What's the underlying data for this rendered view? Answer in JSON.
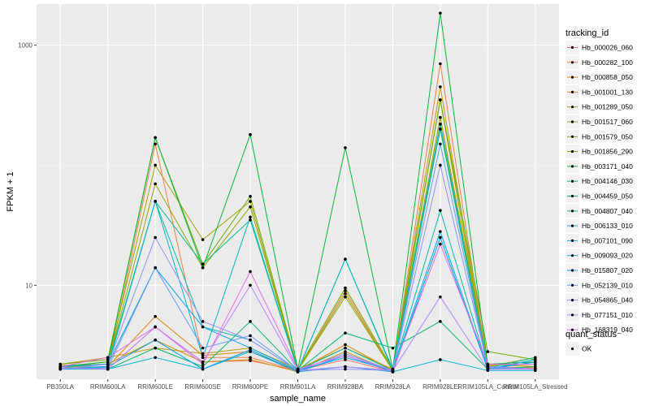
{
  "chart_data": {
    "type": "line",
    "title": "",
    "xlabel": "sample_name",
    "ylabel": "FPKM + 1",
    "y_scale": "log10",
    "ylim": [
      1.65,
      2200
    ],
    "yticks": [
      10,
      1000
    ],
    "grid": true,
    "legend_position": "right",
    "categories": [
      "PB350LA",
      "RRIM600LA",
      "RRIM600LE",
      "RRIM600SE",
      "RRIM600PE",
      "RRIM901LA",
      "RRIM928BA",
      "RRIM928LA",
      "RRIM928LE",
      "RRIM105LA_Control",
      "RRIM105LA_Stressed"
    ],
    "legend_title": "tracking_id",
    "shape_legend": {
      "title": "quant_status",
      "entries": [
        "OK"
      ]
    },
    "series": [
      {
        "name": "Hb_000026_060",
        "color": "#F8766D",
        "values": [
          2.05,
          2.0,
          4.5,
          2.3,
          2.35,
          1.95,
          2.4,
          1.9,
          250,
          2.0,
          2.3
        ]
      },
      {
        "name": "Hb_000282_100",
        "color": "#EF7F49",
        "values": [
          2.1,
          2.05,
          150,
          2.5,
          2.5,
          1.95,
          9.0,
          1.95,
          700,
          2.1,
          2.05
        ]
      },
      {
        "name": "Hb_000858_050",
        "color": "#E38900",
        "values": [
          2.05,
          2.1,
          5.5,
          2.6,
          2.8,
          1.95,
          3.2,
          1.95,
          200,
          2.2,
          2.1
        ]
      },
      {
        "name": "Hb_001001_130",
        "color": "#D39200",
        "values": [
          2.15,
          2.2,
          3.5,
          2.3,
          2.4,
          1.9,
          2.8,
          1.9,
          350,
          2.0,
          2.4
        ]
      },
      {
        "name": "Hb_001289_050",
        "color": "#C09B00",
        "values": [
          2.2,
          2.5,
          3.0,
          2.7,
          3.0,
          2.0,
          3.0,
          2.0,
          450,
          2.1,
          2.5
        ]
      },
      {
        "name": "Hb_001517_060",
        "color": "#A9A400",
        "values": [
          2.1,
          2.3,
          100,
          24,
          50,
          1.95,
          8.5,
          1.95,
          250,
          2.15,
          2.2
        ]
      },
      {
        "name": "Hb_001579_050",
        "color": "#8EAB00",
        "values": [
          2.05,
          2.2,
          70,
          14,
          45,
          1.95,
          8.0,
          1.95,
          350,
          2.1,
          2.0
        ]
      },
      {
        "name": "Hb_001856_290",
        "color": "#6BB100",
        "values": [
          2.2,
          2.4,
          170,
          15,
          55,
          2.0,
          9.5,
          2.0,
          350,
          2.8,
          2.4
        ]
      },
      {
        "name": "Hb_003171_040",
        "color": "#00BA38",
        "values": [
          2.1,
          2.3,
          170,
          14,
          180,
          2.0,
          140,
          2.0,
          1850,
          2.2,
          2.3
        ]
      },
      {
        "name": "Hb_004146_030",
        "color": "#00BE6C",
        "values": [
          2.05,
          2.0,
          3.0,
          2.1,
          5.0,
          1.95,
          4.0,
          3.0,
          5.0,
          2.0,
          2.1
        ]
      },
      {
        "name": "Hb_004459_050",
        "color": "#00C08E",
        "values": [
          2.0,
          2.1,
          50,
          15,
          35,
          1.95,
          16.5,
          1.95,
          200,
          2.0,
          2.3
        ]
      },
      {
        "name": "Hb_004807_040",
        "color": "#00C0AA",
        "values": [
          2.1,
          2.2,
          50,
          4.5,
          3.5,
          1.95,
          3.0,
          1.95,
          42,
          2.05,
          2.5
        ]
      },
      {
        "name": "Hb_006133_010",
        "color": "#00BCC3",
        "values": [
          2.05,
          2.1,
          50,
          2.5,
          37,
          1.95,
          16.5,
          2.0,
          220,
          2.1,
          2.0
        ]
      },
      {
        "name": "Hb_007101_090",
        "color": "#00B6D9",
        "values": [
          2.0,
          2.0,
          2.5,
          2.0,
          2.8,
          1.9,
          2.1,
          1.9,
          2.4,
          1.95,
          1.95
        ]
      },
      {
        "name": "Hb_009093_020",
        "color": "#00ACEC",
        "values": [
          2.1,
          2.2,
          14,
          4.5,
          3.0,
          1.95,
          2.5,
          1.95,
          28,
          2.0,
          2.4
        ]
      },
      {
        "name": "Hb_015807_020",
        "color": "#00A0FA",
        "values": [
          2.0,
          2.1,
          3.5,
          2.0,
          2.9,
          1.9,
          2.6,
          1.9,
          25,
          2.0,
          2.3
        ]
      },
      {
        "name": "Hb_052139_010",
        "color": "#619CFF",
        "values": [
          2.05,
          2.05,
          14,
          3.0,
          3.8,
          1.95,
          2.7,
          1.95,
          150,
          2.05,
          2.0
        ]
      },
      {
        "name": "Hb_054865_040",
        "color": "#9590FF",
        "values": [
          2.0,
          2.2,
          25,
          5.0,
          3.5,
          1.95,
          2.0,
          1.95,
          100,
          2.1,
          2.0
        ]
      },
      {
        "name": "Hb_077151_010",
        "color": "#B983FF",
        "values": [
          2.05,
          2.0,
          4.5,
          2.3,
          10,
          1.95,
          2.1,
          1.95,
          8,
          2.0,
          2.0
        ]
      },
      {
        "name": "Hb_168319_040",
        "color": "#E76BF3",
        "values": [
          2.1,
          2.5,
          4.5,
          2.2,
          13,
          2.0,
          2.6,
          1.95,
          22,
          2.2,
          2.2
        ]
      }
    ]
  }
}
